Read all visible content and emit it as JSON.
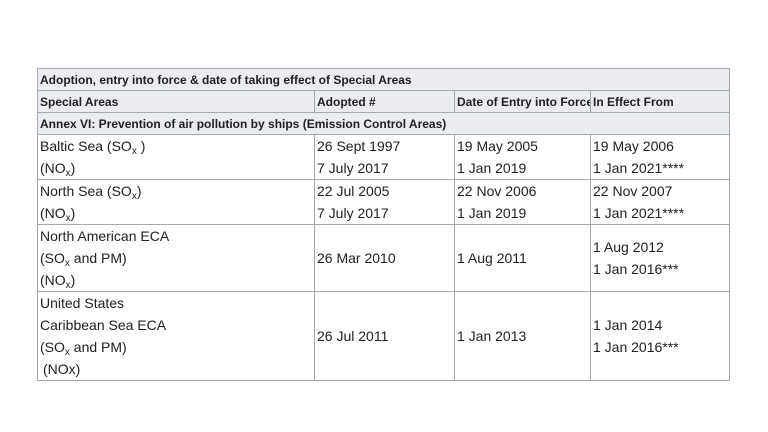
{
  "table": {
    "caption": "Adoption, entry into force & date of taking effect of Special Areas",
    "headers": [
      "Special Areas",
      "Adopted #",
      "Date of Entry into Force",
      "In Effect From"
    ],
    "section": "Annex VI: Prevention of air pollution by ships (Emission Control Areas)",
    "rows": [
      {
        "area": [
          "Baltic Sea (SO",
          "x",
          " )",
          "(NO",
          "x",
          ")"
        ],
        "adopted": [
          "26 Sept 1997",
          "7 July 2017"
        ],
        "entry": [
          "19 May 2005",
          "1 Jan 2019"
        ],
        "effect": [
          "19 May 2006",
          "1 Jan 2021****"
        ]
      },
      {
        "area": [
          "North Sea (SO",
          "x",
          ")",
          "(NO",
          "x",
          ")"
        ],
        "adopted": [
          "22 Jul 2005",
          "7 July 2017"
        ],
        "entry": [
          "22 Nov 2006",
          "1 Jan 2019"
        ],
        "effect": [
          "22 Nov 2007",
          "1 Jan 2021****"
        ]
      },
      {
        "area": [
          "North American ECA",
          "(SO",
          "x",
          " and PM)",
          "(NO",
          "x",
          ")"
        ],
        "adopted": [
          "26 Mar 2010"
        ],
        "entry": [
          "1 Aug 2011"
        ],
        "effect": [
          "1 Aug 2012",
          "1 Jan 2016***"
        ]
      },
      {
        "area": [
          "United States",
          "Caribbean Sea ECA",
          "(SO",
          "x",
          " and PM)",
          "(NOx)"
        ],
        "adopted": [
          "26 Jul 2011"
        ],
        "entry": [
          "1 Jan 2013"
        ],
        "effect": [
          "1 Jan 2014",
          "1 Jan 2016***"
        ]
      }
    ]
  }
}
